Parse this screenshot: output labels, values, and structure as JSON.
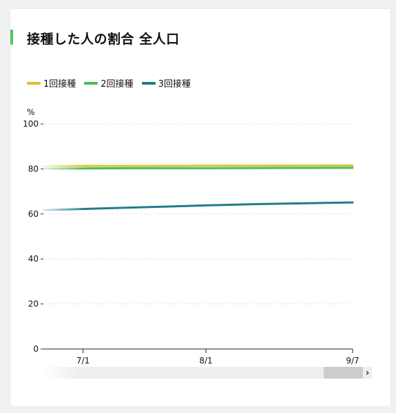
{
  "title": "接種した人の割合 全人口",
  "unit_label": "%",
  "colors": {
    "dose1": "#d4c62a",
    "dose2": "#4bbd5f",
    "dose3": "#1f7c8c",
    "title_accent": "#59c36a"
  },
  "scroll_icon": "chevron-right-icon",
  "chart_data": {
    "type": "line",
    "title": "接種した人の割合 全人口",
    "ylabel": "%",
    "ylim": [
      0,
      100
    ],
    "yticks": [
      0,
      20,
      40,
      60,
      80,
      100
    ],
    "ytick_labels": [
      "0",
      "20",
      "40",
      "60",
      "80",
      "100"
    ],
    "x_ticks": [
      "7/1",
      "8/1",
      "9/7"
    ],
    "x_tick_dates": [
      "2022-07-01",
      "2022-08-01",
      "2022-09-07"
    ],
    "grid": true,
    "legend_position": "top-left",
    "x": [
      "2022-06-21",
      "2022-07-01",
      "2022-07-15",
      "2022-08-01",
      "2022-08-15",
      "2022-09-07"
    ],
    "series": [
      {
        "name": "1回接種",
        "color": "#d4c62a",
        "values": [
          81.2,
          81.3,
          81.3,
          81.4,
          81.4,
          81.5
        ]
      },
      {
        "name": "2回接種",
        "color": "#4bbd5f",
        "values": [
          80.1,
          80.2,
          80.3,
          80.3,
          80.4,
          80.5
        ]
      },
      {
        "name": "3回接種",
        "color": "#1f7c8c",
        "values": [
          61.7,
          62.2,
          62.9,
          63.8,
          64.4,
          65.1
        ]
      }
    ]
  }
}
